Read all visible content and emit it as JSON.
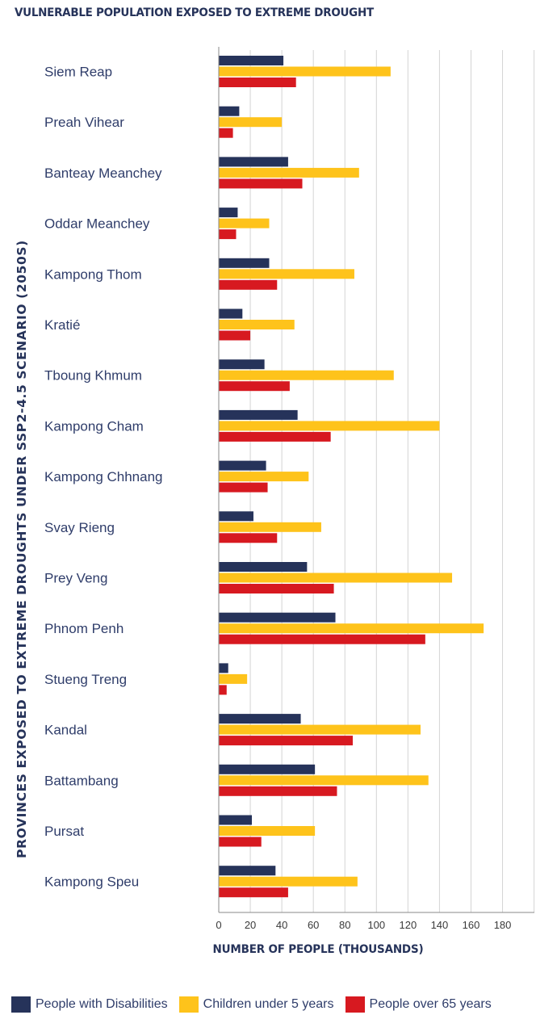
{
  "chart_data": {
    "type": "bar",
    "orientation": "horizontal",
    "title": "VULNERABLE POPULATION EXPOSED TO EXTREME DROUGHT",
    "xlabel": "NUMBER OF PEOPLE (THOUSANDS)",
    "ylabel": "PROVINCES EXPOSED TO EXTREME DROUGHTS UNDER SSP2-4.5 SCENARIO (2050S)",
    "xlim": [
      0,
      200
    ],
    "xticks": [
      0,
      20,
      40,
      60,
      80,
      100,
      120,
      140,
      160,
      180
    ],
    "grid": true,
    "legend_position": "bottom",
    "categories": [
      "Siem Reap",
      "Preah Vihear",
      "Banteay Meanchey",
      "Oddar Meanchey",
      "Kampong Thom",
      "Kratié",
      "Tboung Khmum",
      "Kampong Cham",
      "Kampong Chhnang",
      "Svay Rieng",
      "Prey Veng",
      "Phnom Penh",
      "Stueng Treng",
      "Kandal",
      "Battambang",
      "Pursat",
      "Kampong Speu"
    ],
    "series": [
      {
        "name": "People with Disabilities",
        "color": "#26335a",
        "values": [
          41,
          13,
          44,
          12,
          32,
          15,
          29,
          50,
          30,
          22,
          56,
          74,
          6,
          52,
          61,
          21,
          36
        ]
      },
      {
        "name": "Children under 5 years",
        "color": "#fec31b",
        "values": [
          109,
          40,
          89,
          32,
          86,
          48,
          111,
          140,
          57,
          65,
          148,
          168,
          18,
          128,
          133,
          61,
          88
        ]
      },
      {
        "name": "People over 65 years",
        "color": "#d71920",
        "values": [
          49,
          9,
          53,
          11,
          37,
          20,
          45,
          71,
          31,
          37,
          73,
          131,
          5,
          85,
          75,
          27,
          44
        ]
      }
    ]
  }
}
